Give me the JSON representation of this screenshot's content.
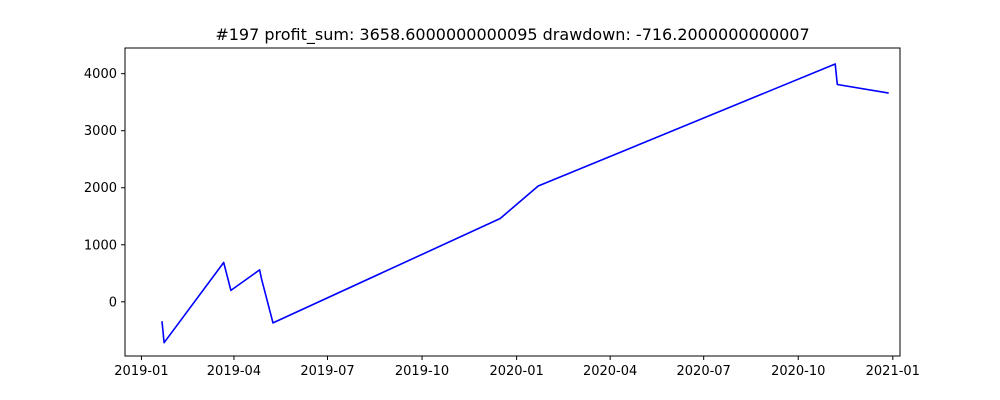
{
  "chart_data": {
    "type": "line",
    "title": "#197   profit_sum: 3658.6000000000095 drawdown: -716.2000000000007",
    "xlabel": "",
    "ylabel": "",
    "x_axis_type": "date",
    "xlim": [
      "2018-12-16",
      "2021-01-08"
    ],
    "ylim": [
      -950,
      4450
    ],
    "x_ticks": [
      "2019-01-01",
      "2019-04-01",
      "2019-07-01",
      "2019-10-01",
      "2020-01-01",
      "2020-04-01",
      "2020-07-01",
      "2020-10-01",
      "2021-01-01"
    ],
    "x_tick_labels": [
      "2019-01",
      "2019-04",
      "2019-07",
      "2019-10",
      "2020-01",
      "2020-04",
      "2020-07",
      "2020-10",
      "2021-01"
    ],
    "y_ticks": [
      0,
      1000,
      2000,
      3000,
      4000
    ],
    "y_tick_labels": [
      "0",
      "1000",
      "2000",
      "3000",
      "4000"
    ],
    "grid": false,
    "legend": "none",
    "series": [
      {
        "color": "#0000ff",
        "points": [
          [
            "2019-01-21",
            -340
          ],
          [
            "2019-01-23",
            -716
          ],
          [
            "2019-03-22",
            690
          ],
          [
            "2019-03-29",
            200
          ],
          [
            "2019-04-26",
            560
          ],
          [
            "2019-04-28",
            390
          ],
          [
            "2019-05-09",
            -370
          ],
          [
            "2019-12-16",
            1460
          ],
          [
            "2020-01-22",
            2030
          ],
          [
            "2020-11-06",
            4170
          ],
          [
            "2020-11-08",
            3810
          ],
          [
            "2020-12-28",
            3659
          ]
        ]
      }
    ]
  }
}
